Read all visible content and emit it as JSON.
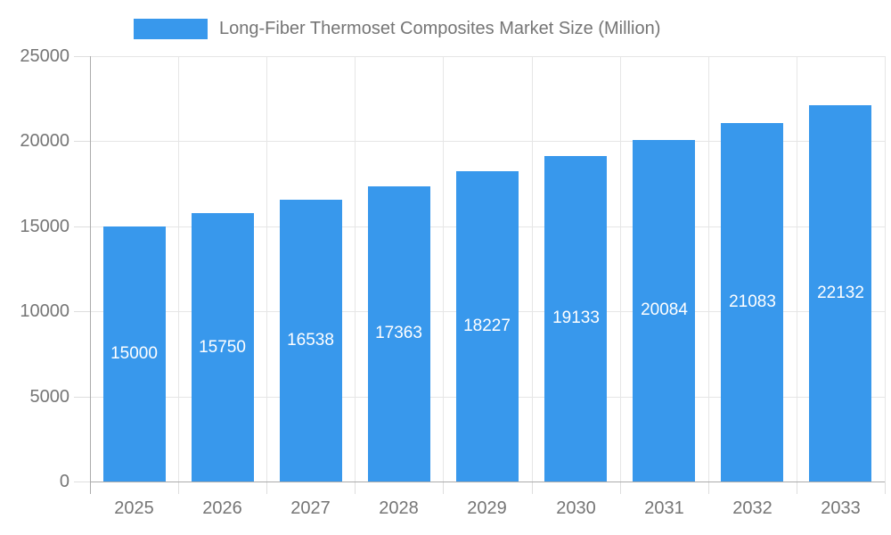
{
  "legend": {
    "label": "Long-Fiber Thermoset Composites Market Size (Million)"
  },
  "chart_data": {
    "type": "bar",
    "title": "Long-Fiber Thermoset Composites Market Size (Million)",
    "categories": [
      "2025",
      "2026",
      "2027",
      "2028",
      "2029",
      "2030",
      "2031",
      "2032",
      "2033"
    ],
    "values": [
      15000,
      15750,
      16538,
      17363,
      18227,
      19133,
      20084,
      21083,
      22132
    ],
    "xlabel": "",
    "ylabel": "",
    "ylim": [
      0,
      25000
    ],
    "yticks": [
      0,
      5000,
      10000,
      15000,
      20000,
      25000
    ],
    "grid": true,
    "legend_position": "top",
    "colors": {
      "bar": "#3898ec",
      "grid": "#e6e6e6",
      "tick": "#dedede",
      "axis_line": "#ababab",
      "text": "#757575",
      "value_label": "#ffffff",
      "background": "#ffffff"
    }
  }
}
